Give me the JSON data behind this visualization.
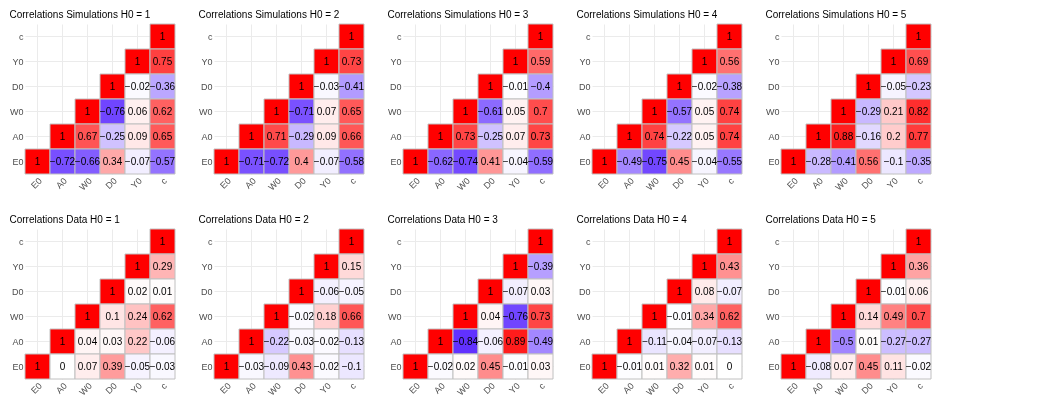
{
  "chart_data": [
    {
      "type": "heatmap",
      "title": "Correlations Simulations H0 = 1",
      "categories": [
        "E0",
        "A0",
        "W0",
        "D0",
        "Y0",
        "c"
      ],
      "y_categories": [
        "c",
        "Y0",
        "D0",
        "W0",
        "A0",
        "E0"
      ],
      "cells": [
        [
          null,
          null,
          null,
          null,
          null,
          1
        ],
        [
          null,
          null,
          null,
          null,
          1,
          0.75
        ],
        [
          null,
          null,
          null,
          1,
          -0.02,
          -0.36
        ],
        [
          null,
          null,
          1,
          -0.76,
          0.06,
          0.62
        ],
        [
          null,
          1,
          0.67,
          -0.25,
          0.09,
          0.65
        ],
        [
          1,
          -0.72,
          -0.66,
          0.34,
          -0.07,
          -0.57
        ]
      ],
      "data_labels": true,
      "grid": true
    },
    {
      "type": "heatmap",
      "title": "Correlations Simulations H0 = 2",
      "categories": [
        "E0",
        "A0",
        "W0",
        "D0",
        "Y0",
        "c"
      ],
      "y_categories": [
        "c",
        "Y0",
        "D0",
        "W0",
        "A0",
        "E0"
      ],
      "cells": [
        [
          null,
          null,
          null,
          null,
          null,
          1
        ],
        [
          null,
          null,
          null,
          null,
          1,
          0.73
        ],
        [
          null,
          null,
          null,
          1,
          -0.03,
          -0.41
        ],
        [
          null,
          null,
          1,
          -0.71,
          0.07,
          0.65
        ],
        [
          null,
          1,
          0.71,
          -0.29,
          0.09,
          0.66
        ],
        [
          1,
          -0.71,
          -0.72,
          0.4,
          -0.07,
          -0.58
        ]
      ],
      "data_labels": true,
      "grid": true
    },
    {
      "type": "heatmap",
      "title": "Correlations Simulations H0 = 3",
      "categories": [
        "E0",
        "A0",
        "W0",
        "D0",
        "Y0",
        "c"
      ],
      "y_categories": [
        "c",
        "Y0",
        "D0",
        "W0",
        "A0",
        "E0"
      ],
      "cells": [
        [
          null,
          null,
          null,
          null,
          null,
          1
        ],
        [
          null,
          null,
          null,
          null,
          1,
          0.59
        ],
        [
          null,
          null,
          null,
          1,
          -0.01,
          -0.4
        ],
        [
          null,
          null,
          1,
          -0.61,
          0.05,
          0.7
        ],
        [
          null,
          1,
          0.73,
          -0.25,
          0.07,
          0.73
        ],
        [
          1,
          -0.62,
          -0.74,
          0.41,
          -0.04,
          -0.59
        ]
      ],
      "data_labels": true,
      "grid": true
    },
    {
      "type": "heatmap",
      "title": "Correlations Simulations H0 = 4",
      "categories": [
        "E0",
        "A0",
        "W0",
        "D0",
        "Y0",
        "c"
      ],
      "y_categories": [
        "c",
        "Y0",
        "D0",
        "W0",
        "A0",
        "E0"
      ],
      "cells": [
        [
          null,
          null,
          null,
          null,
          null,
          1
        ],
        [
          null,
          null,
          null,
          null,
          1,
          0.56
        ],
        [
          null,
          null,
          null,
          1,
          -0.02,
          -0.38
        ],
        [
          null,
          null,
          1,
          -0.57,
          0.05,
          0.74
        ],
        [
          null,
          1,
          0.74,
          -0.22,
          0.05,
          0.74
        ],
        [
          1,
          -0.49,
          -0.75,
          0.45,
          -0.04,
          -0.55
        ]
      ],
      "data_labels": true,
      "grid": true
    },
    {
      "type": "heatmap",
      "title": "Correlations Simulations H0 = 5",
      "categories": [
        "E0",
        "A0",
        "W0",
        "D0",
        "Y0",
        "c"
      ],
      "y_categories": [
        "c",
        "Y0",
        "D0",
        "W0",
        "A0",
        "E0"
      ],
      "cells": [
        [
          null,
          null,
          null,
          null,
          null,
          1
        ],
        [
          null,
          null,
          null,
          null,
          1,
          0.69
        ],
        [
          null,
          null,
          null,
          1,
          -0.05,
          -0.23
        ],
        [
          null,
          null,
          1,
          -0.29,
          0.21,
          0.82
        ],
        [
          null,
          1,
          0.88,
          -0.16,
          0.2,
          0.77
        ],
        [
          1,
          -0.28,
          -0.41,
          0.56,
          -0.1,
          -0.35
        ]
      ],
      "data_labels": true,
      "grid": true
    },
    {
      "type": "heatmap",
      "title": "Correlations Data H0 = 1",
      "categories": [
        "E0",
        "A0",
        "W0",
        "D0",
        "Y0",
        "c"
      ],
      "y_categories": [
        "c",
        "Y0",
        "D0",
        "W0",
        "A0",
        "E0"
      ],
      "cells": [
        [
          null,
          null,
          null,
          null,
          null,
          1
        ],
        [
          null,
          null,
          null,
          null,
          1,
          0.29
        ],
        [
          null,
          null,
          null,
          1,
          0.02,
          0.01
        ],
        [
          null,
          null,
          1,
          0.1,
          0.24,
          0.62
        ],
        [
          null,
          1,
          0.04,
          0.03,
          0.22,
          -0.06
        ],
        [
          1,
          0,
          0.07,
          0.39,
          -0.05,
          -0.03
        ]
      ],
      "data_labels": true,
      "grid": true
    },
    {
      "type": "heatmap",
      "title": "Correlations Data H0 = 2",
      "categories": [
        "E0",
        "A0",
        "W0",
        "D0",
        "Y0",
        "c"
      ],
      "y_categories": [
        "c",
        "Y0",
        "D0",
        "W0",
        "A0",
        "E0"
      ],
      "cells": [
        [
          null,
          null,
          null,
          null,
          null,
          1
        ],
        [
          null,
          null,
          null,
          null,
          1,
          0.15
        ],
        [
          null,
          null,
          null,
          1,
          -0.06,
          -0.05
        ],
        [
          null,
          null,
          1,
          -0.02,
          0.18,
          0.66
        ],
        [
          null,
          1,
          -0.22,
          -0.03,
          -0.02,
          -0.13
        ],
        [
          1,
          -0.03,
          -0.09,
          0.43,
          -0.02,
          -0.1
        ]
      ],
      "data_labels": true,
      "grid": true
    },
    {
      "type": "heatmap",
      "title": "Correlations Data H0 = 3",
      "categories": [
        "E0",
        "A0",
        "W0",
        "D0",
        "Y0",
        "c"
      ],
      "y_categories": [
        "c",
        "Y0",
        "D0",
        "W0",
        "A0",
        "E0"
      ],
      "cells": [
        [
          null,
          null,
          null,
          null,
          null,
          1
        ],
        [
          null,
          null,
          null,
          null,
          1,
          -0.39
        ],
        [
          null,
          null,
          null,
          1,
          -0.07,
          0.03
        ],
        [
          null,
          null,
          1,
          0.04,
          -0.76,
          0.73
        ],
        [
          null,
          1,
          -0.84,
          -0.06,
          0.89,
          -0.49
        ],
        [
          1,
          -0.02,
          0.02,
          0.45,
          -0.01,
          0.03
        ]
      ],
      "data_labels": true,
      "grid": true
    },
    {
      "type": "heatmap",
      "title": "Correlations Data H0 = 4",
      "categories": [
        "E0",
        "A0",
        "W0",
        "D0",
        "Y0",
        "c"
      ],
      "y_categories": [
        "c",
        "Y0",
        "D0",
        "W0",
        "A0",
        "E0"
      ],
      "cells": [
        [
          null,
          null,
          null,
          null,
          null,
          1
        ],
        [
          null,
          null,
          null,
          null,
          1,
          0.43
        ],
        [
          null,
          null,
          null,
          1,
          0.08,
          -0.07
        ],
        [
          null,
          null,
          1,
          -0.01,
          0.34,
          0.62
        ],
        [
          null,
          1,
          -0.11,
          -0.04,
          -0.07,
          -0.13
        ],
        [
          1,
          -0.01,
          0.01,
          0.32,
          0.01,
          0
        ]
      ],
      "data_labels": true,
      "grid": true
    },
    {
      "type": "heatmap",
      "title": "Correlations Data H0 = 5",
      "categories": [
        "E0",
        "A0",
        "W0",
        "D0",
        "Y0",
        "c"
      ],
      "y_categories": [
        "c",
        "Y0",
        "D0",
        "W0",
        "A0",
        "E0"
      ],
      "cells": [
        [
          null,
          null,
          null,
          null,
          null,
          1
        ],
        [
          null,
          null,
          null,
          null,
          1,
          0.36
        ],
        [
          null,
          null,
          null,
          1,
          -0.01,
          0.06
        ],
        [
          null,
          null,
          1,
          0.14,
          0.49,
          0.7
        ],
        [
          null,
          1,
          -0.5,
          0.01,
          -0.27,
          -0.27
        ],
        [
          1,
          -0.08,
          0.07,
          0.45,
          0.11,
          -0.02
        ]
      ],
      "data_labels": true,
      "grid": true
    }
  ]
}
